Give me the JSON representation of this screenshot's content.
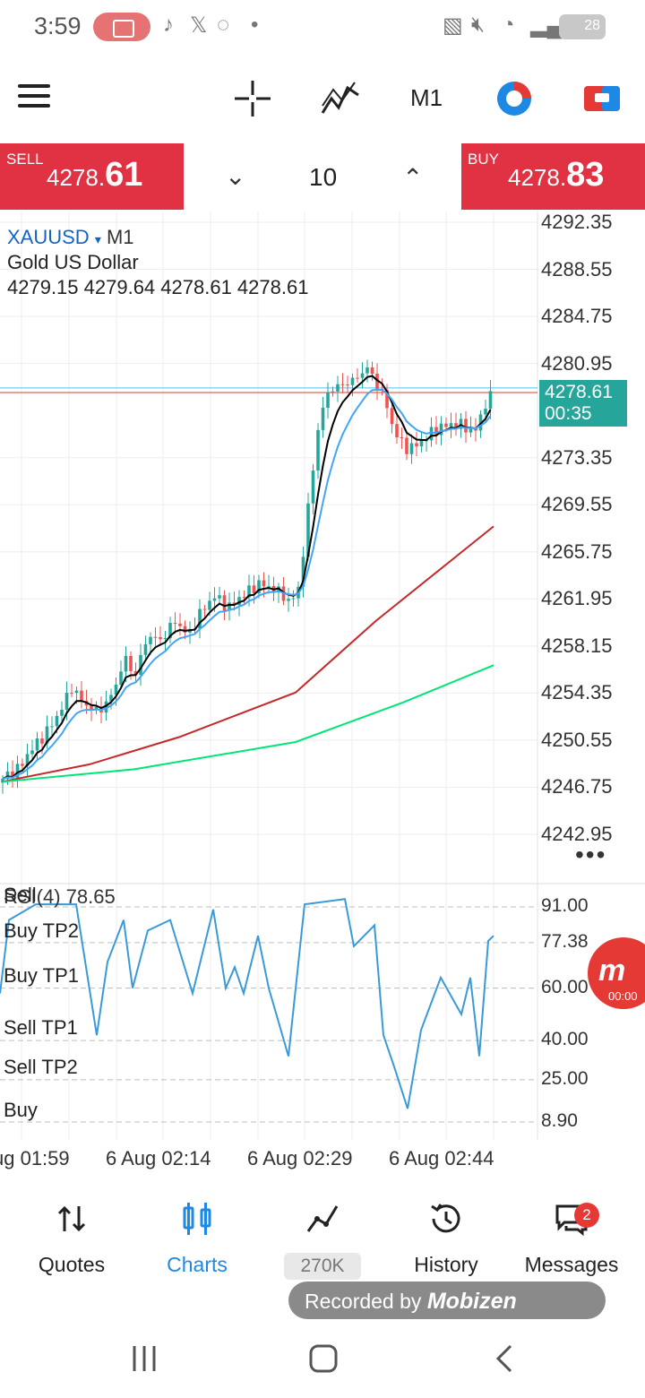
{
  "status_bar": {
    "time": "3:59",
    "battery": "28",
    "icons": [
      "screen-record-icon",
      "tiktok-icon",
      "x-icon",
      "whatsapp-icon",
      "dot-icon",
      "cast-icon",
      "mute-icon",
      "wifi-icon",
      "signal-icon",
      "battery-icon"
    ]
  },
  "toolbar": {
    "timeframe": "M1",
    "icons": [
      "menu-icon",
      "crosshair-icon",
      "indicators-icon",
      "objects-icon",
      "trade-icon"
    ]
  },
  "trade_bar": {
    "sell_label": "SELL",
    "sell_price_small": "4278.",
    "sell_price_big": "61",
    "buy_label": "BUY",
    "buy_price_small": "4278.",
    "buy_price_big": "83",
    "volume": "10"
  },
  "chart": {
    "symbol": "XAUUSD",
    "symbol_arrow": "▾",
    "timeframe": "M1",
    "description": "Gold US Dollar",
    "ohlc": "4279.15 4279.64 4278.61 4278.61",
    "price_axis": [
      "4292.35",
      "4288.55",
      "4284.75",
      "4280.95",
      "4273.35",
      "4269.55",
      "4265.75",
      "4261.95",
      "4258.15",
      "4254.35",
      "4250.55",
      "4246.75",
      "4242.95"
    ],
    "current_price": "4278.61",
    "countdown": "00:35",
    "more": "•••",
    "colors": {
      "up": "#26a69a",
      "down": "#ef5350",
      "ma_fast": "#000000",
      "ma_mid": "#42a5f5",
      "ma_slow": "#c62828",
      "ma_long": "#00e676",
      "bid_line": "#e53935",
      "ask_line": "#4fc3f7"
    }
  },
  "indicator": {
    "title": "RSI(4) 78.65",
    "overlap_text": "Sell",
    "levels": [
      "Buy TP2",
      "Buy TP1",
      "Sell TP1",
      "Sell TP2",
      "Buy"
    ],
    "values": [
      "91.00",
      "77.38",
      "60.00",
      "40.00",
      "25.00",
      "8.90"
    ],
    "line_color": "#3a9ad9"
  },
  "time_axis": [
    "ug 01:59",
    "6 Aug 02:14",
    "6 Aug 02:29",
    "6 Aug 02:44"
  ],
  "overlay_badge": {
    "text": "00:00"
  },
  "bottom_nav": {
    "items": [
      {
        "label": "Quotes",
        "icon": "quotes-arrows-icon"
      },
      {
        "label": "Charts",
        "icon": "charts-candles-icon",
        "active": true
      },
      {
        "label": "270K",
        "icon": "trade-line-icon"
      },
      {
        "label": "History",
        "icon": "history-icon"
      },
      {
        "label": "Messages",
        "icon": "messages-icon",
        "badge": "2"
      }
    ]
  },
  "recorded": {
    "prefix": "Recorded by",
    "brand": "Mobizen"
  },
  "system_nav": [
    "recents-icon",
    "home-icon",
    "back-icon"
  ]
}
